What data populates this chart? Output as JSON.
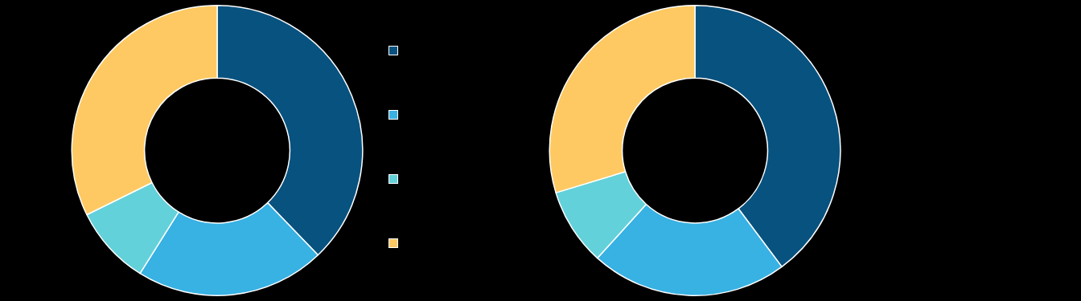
{
  "chart_data": [
    {
      "type": "donut",
      "categories": [
        null,
        null,
        null,
        null
      ],
      "values": [
        37.8,
        21.1,
        8.8,
        32.3
      ],
      "colors": [
        "#08527f",
        "#38b1e3",
        "#63d1da",
        "#fec962"
      ]
    },
    {
      "type": "donut",
      "categories": [
        null,
        null,
        null,
        null
      ],
      "values": [
        39.8,
        21.9,
        8.6,
        29.7
      ],
      "colors": [
        "#08527f",
        "#38b1e3",
        "#63d1da",
        "#fec962"
      ]
    }
  ]
}
